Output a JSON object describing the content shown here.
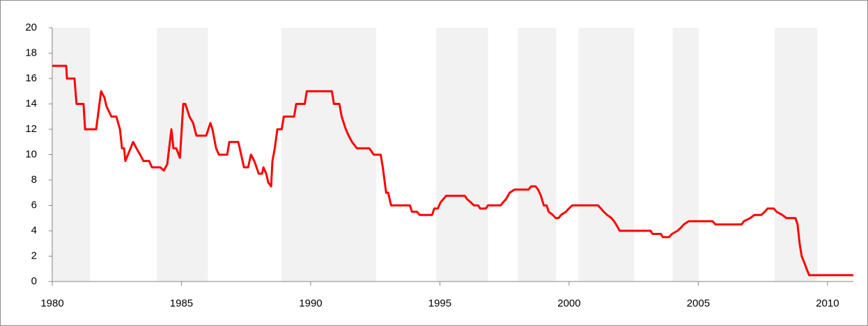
{
  "chart_data": {
    "type": "line",
    "xlim": [
      1980,
      2011
    ],
    "xticks": [
      1980,
      1985,
      1990,
      1995,
      2000,
      2005,
      2010
    ],
    "ylim": [
      0,
      20
    ],
    "yticks": [
      0,
      2,
      4,
      6,
      8,
      10,
      12,
      14,
      16,
      18,
      20
    ],
    "grid": false,
    "shade_color": "#f2f2f2",
    "shaded_periods": [
      [
        1980.0,
        1981.46
      ],
      [
        1984.05,
        1986.02
      ],
      [
        1988.87,
        1992.54
      ],
      [
        1994.86,
        1996.86
      ],
      [
        1998.02,
        1999.5
      ],
      [
        2000.36,
        2002.52
      ],
      [
        2004.01,
        2005.01
      ],
      [
        2007.95,
        2009.6
      ]
    ],
    "series": [
      {
        "color": "#ff0000",
        "x": [
          1980.0,
          1980.54,
          1980.57,
          1980.86,
          1980.94,
          1981.21,
          1981.27,
          1981.7,
          1981.89,
          1982.02,
          1982.1,
          1982.29,
          1982.48,
          1982.62,
          1982.7,
          1982.78,
          1982.83,
          1982.97,
          1983.13,
          1983.26,
          1983.4,
          1983.53,
          1983.75,
          1983.86,
          1984.18,
          1984.32,
          1984.45,
          1984.61,
          1984.69,
          1984.8,
          1984.94,
          1985.07,
          1985.15,
          1985.31,
          1985.45,
          1985.58,
          1985.96,
          1986.12,
          1986.2,
          1986.34,
          1986.45,
          1986.77,
          1986.85,
          1987.2,
          1987.31,
          1987.42,
          1987.58,
          1987.69,
          1987.82,
          1987.99,
          1988.12,
          1988.17,
          1988.28,
          1988.36,
          1988.47,
          1988.52,
          1988.61,
          1988.71,
          1988.88,
          1988.96,
          1989.36,
          1989.44,
          1989.77,
          1989.85,
          1990.82,
          1990.9,
          1991.11,
          1991.2,
          1991.28,
          1991.36,
          1991.47,
          1991.6,
          1991.79,
          1992.27,
          1992.44,
          1992.71,
          1992.79,
          1992.92,
          1993.0,
          1993.11,
          1993.84,
          1993.92,
          1994.11,
          1994.22,
          1994.7,
          1994.78,
          1994.92,
          1995.03,
          1995.24,
          1995.97,
          1996.05,
          1996.19,
          1996.32,
          1996.48,
          1996.56,
          1996.78,
          1996.86,
          1997.35,
          1997.45,
          1997.56,
          1997.7,
          1997.89,
          1998.43,
          1998.53,
          1998.7,
          1998.8,
          1998.91,
          1999.02,
          1999.13,
          1999.21,
          1999.37,
          1999.48,
          1999.59,
          1999.69,
          1999.88,
          1999.99,
          2000.12,
          2001.12,
          2001.23,
          2001.34,
          2001.47,
          2001.64,
          2001.74,
          2001.82,
          2001.96,
          2003.15,
          2003.23,
          2003.55,
          2003.63,
          2003.87,
          2003.98,
          2004.2,
          2004.33,
          2004.44,
          2004.63,
          2005.55,
          2005.66,
          2006.68,
          2006.76,
          2007.01,
          2007.17,
          2007.44,
          2007.57,
          2007.68,
          2007.92,
          2008.03,
          2008.25,
          2008.41,
          2008.76,
          2008.84,
          2008.92,
          2009.0,
          2009.1,
          2009.19,
          2009.29,
          2011.0
        ],
        "values": [
          17,
          17,
          16,
          16,
          14,
          14,
          12,
          12,
          15,
          14.5,
          13.8,
          13,
          13,
          12,
          10.5,
          10.5,
          9.5,
          10.2,
          11,
          10.5,
          10,
          9.5,
          9.5,
          9,
          9,
          8.75,
          9.25,
          12,
          10.5,
          10.5,
          9.75,
          14,
          14,
          13,
          12.5,
          11.5,
          11.5,
          12.5,
          12,
          10.5,
          10,
          10,
          11,
          11,
          10,
          9,
          9,
          10,
          9.5,
          8.5,
          8.5,
          9,
          8.5,
          7.8,
          7.5,
          9.5,
          10.5,
          12,
          12,
          13,
          13,
          14,
          14,
          15,
          15,
          14,
          14,
          13,
          12.5,
          12,
          11.5,
          11,
          10.5,
          10.5,
          10,
          10,
          9,
          7,
          7,
          6,
          6,
          5.5,
          5.5,
          5.25,
          5.25,
          5.75,
          5.75,
          6.25,
          6.75,
          6.75,
          6.5,
          6.25,
          6,
          6,
          5.75,
          5.75,
          6,
          6,
          6.25,
          6.5,
          7,
          7.25,
          7.25,
          7.5,
          7.5,
          7.25,
          6.75,
          6,
          6,
          5.5,
          5.25,
          5,
          5,
          5.25,
          5.5,
          5.75,
          6,
          6,
          5.75,
          5.5,
          5.25,
          5,
          4.75,
          4.5,
          4,
          4,
          3.75,
          3.75,
          3.5,
          3.5,
          3.75,
          4,
          4.25,
          4.5,
          4.75,
          4.75,
          4.5,
          4.5,
          4.75,
          5,
          5.25,
          5.25,
          5.5,
          5.75,
          5.75,
          5.5,
          5.25,
          5,
          5,
          4.5,
          3,
          2,
          1.5,
          1,
          0.5,
          0.5
        ]
      }
    ]
  }
}
